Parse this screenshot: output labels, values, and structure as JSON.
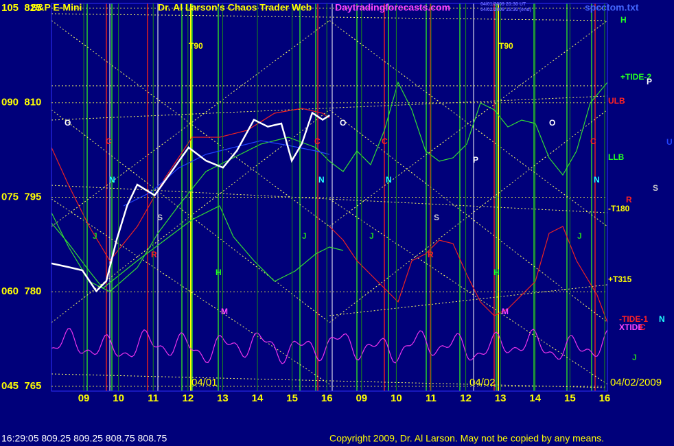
{
  "header": {
    "symbol": "S&P E-Mini",
    "title": "Dr. Al Larson's Chaos Trader Web",
    "site": "Daytradingforecasts.com",
    "stamp1": "04/01/2009 20:30 UT",
    "stamp2": "04/02/2009 15:30 (end)",
    "file": "spcctom.txt"
  },
  "footer": {
    "quote": "16:29:05  809.25 809.25 808.75 808.75",
    "copyright": "Copyright 2009, Dr. Al Larson. May not be copied by any means."
  },
  "chart_data": {
    "type": "line",
    "xlim": [
      -0.93,
      15.08
    ],
    "xticks": [
      {
        "value": 0,
        "label": "09"
      },
      {
        "value": 1,
        "label": "10"
      },
      {
        "value": 2,
        "label": "11"
      },
      {
        "value": 3,
        "label": "12"
      },
      {
        "value": 4,
        "label": "13"
      },
      {
        "value": 5,
        "label": "14"
      },
      {
        "value": 6,
        "label": "15"
      },
      {
        "value": 7,
        "label": "16"
      },
      {
        "value": 8,
        "label": "09"
      },
      {
        "value": 9,
        "label": "10"
      },
      {
        "value": 10,
        "label": "11"
      },
      {
        "value": 11,
        "label": "12"
      },
      {
        "value": 12,
        "label": "13"
      },
      {
        "value": 13,
        "label": "14"
      },
      {
        "value": 14,
        "label": "15"
      },
      {
        "value": 15,
        "label": "16"
      }
    ],
    "ylim": [
      764.24,
      825.76
    ],
    "yticks": [
      {
        "value": 825,
        "label": "105  825"
      },
      {
        "value": 810,
        "label": "090  810"
      },
      {
        "value": 795,
        "label": "075  795"
      },
      {
        "value": 780,
        "label": "060  780"
      },
      {
        "value": 765,
        "label": "045  765"
      }
    ],
    "grid": true,
    "x": [
      -0.93,
      -0.43,
      -0.04,
      0.36,
      0.65,
      0.95,
      1.25,
      1.54,
      2.04,
      2.53,
      3.02,
      3.52,
      4.01,
      4.41,
      4.9,
      5.3,
      5.69,
      5.99,
      6.28,
      6.58,
      6.88,
      7.08
    ],
    "series": [
      {
        "color": "#ffffff",
        "values": [
          784.5,
          783.9,
          783.4,
          780.1,
          781.7,
          788.3,
          793.7,
          797.0,
          795.3,
          799.1,
          802.9,
          800.8,
          799.7,
          802.4,
          807.3,
          806.2,
          806.7,
          800.8,
          803.5,
          808.4,
          807.3,
          808.0
        ]
      }
    ],
    "dates": [
      "04/01",
      "04/02",
      "04/02/2009"
    ],
    "annotations": [
      "T90",
      "T90",
      "O",
      "O",
      "O",
      "C",
      "C",
      "C",
      "C",
      "N",
      "N",
      "N",
      "N",
      "J",
      "J",
      "J",
      "J",
      "S",
      "S",
      "R",
      "R",
      "H",
      "H",
      "M",
      "M",
      "P"
    ],
    "right_labels": [
      "H",
      "+TIDE-2",
      "P",
      "ULB",
      "U",
      "LLB",
      "S",
      "R",
      "-T180",
      "+T315",
      "-TIDE-1",
      "N",
      "XTIDE",
      "C",
      "J"
    ]
  }
}
